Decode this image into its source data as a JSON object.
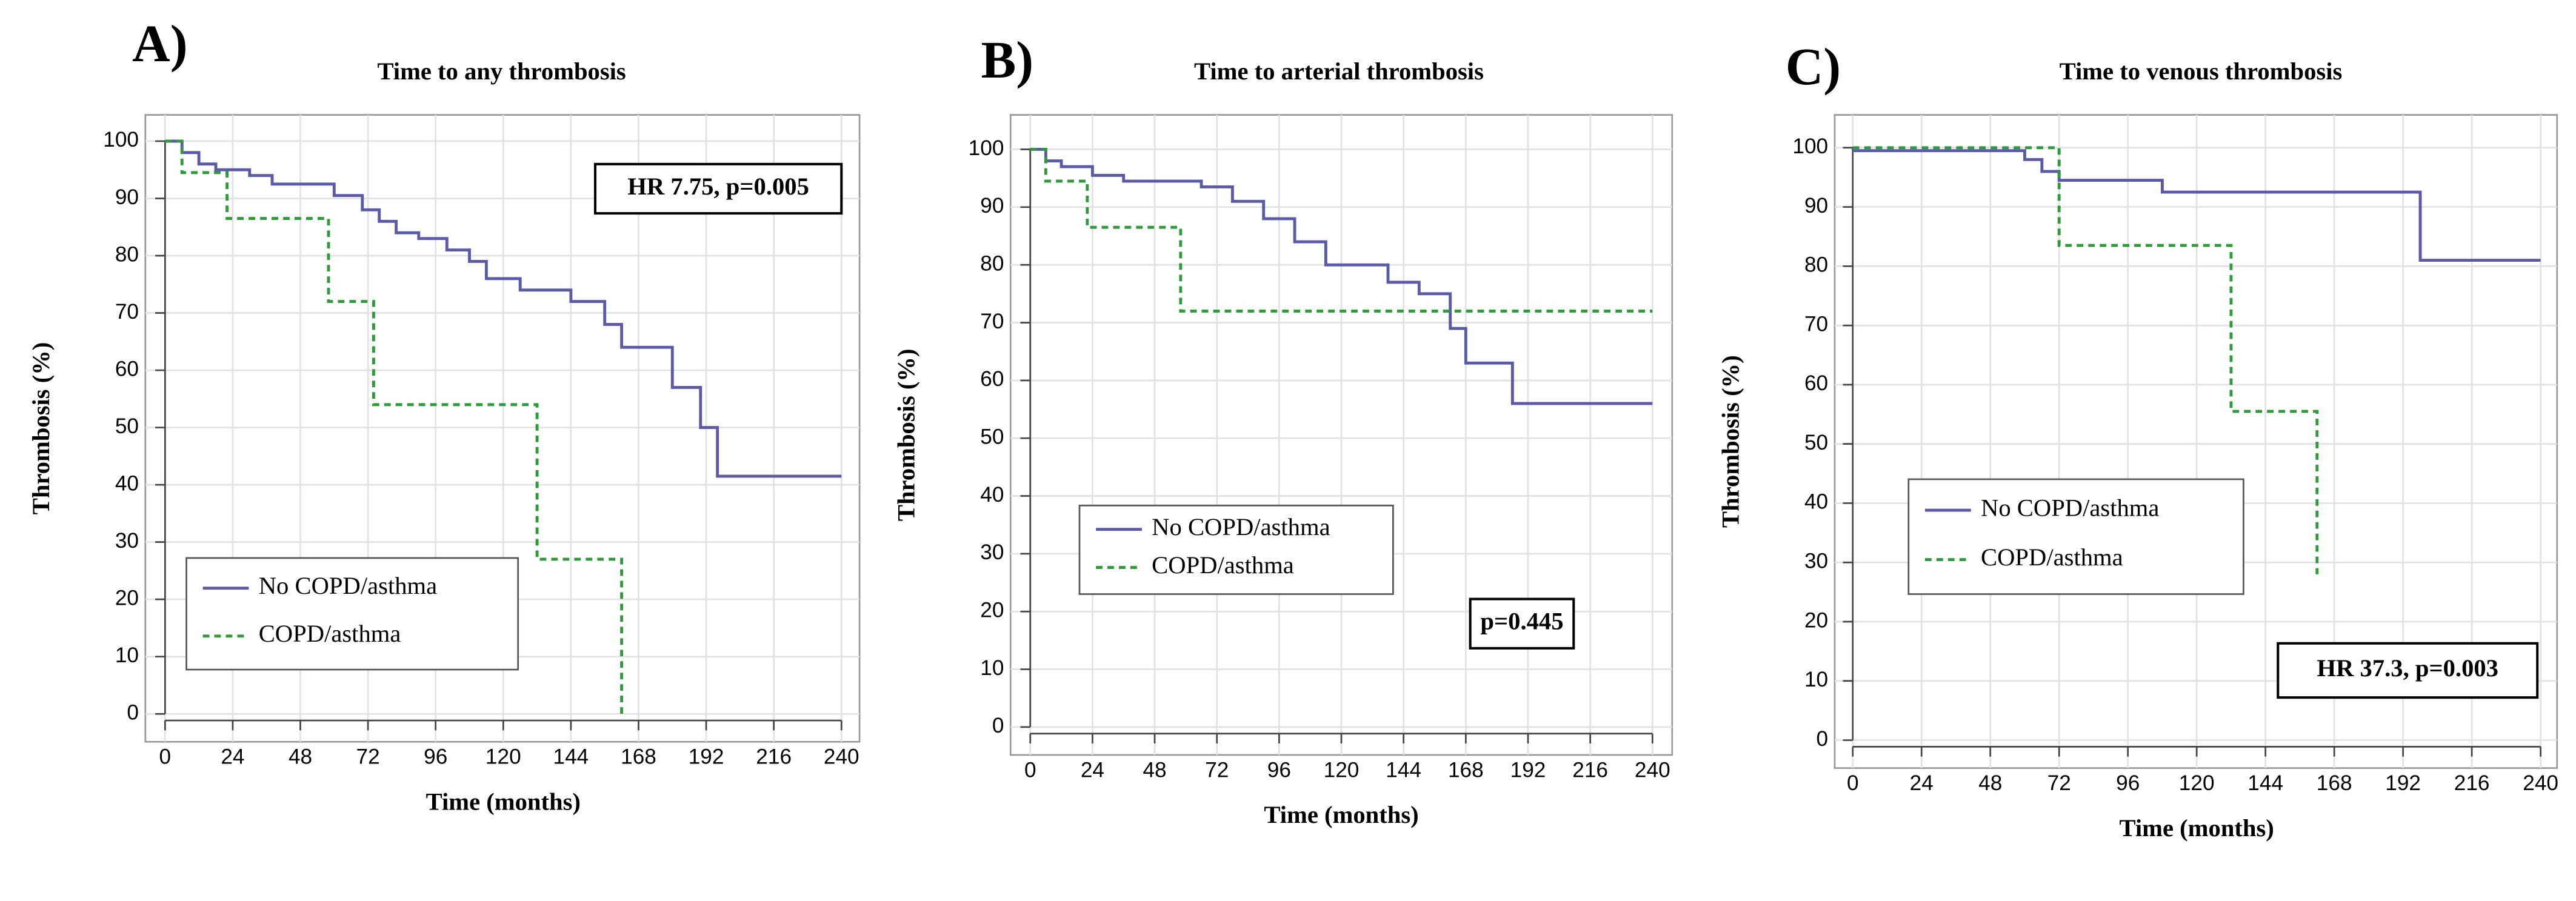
{
  "chart_data": [
    {
      "type": "step",
      "label": "A)",
      "title": "Time to any thrombosis",
      "xlabel": "Time (months)",
      "ylabel": "Thrombosis (%)",
      "xlim": [
        0,
        240
      ],
      "xticks": [
        0,
        24,
        48,
        72,
        96,
        120,
        144,
        168,
        192,
        216,
        240
      ],
      "ylim": [
        0,
        100
      ],
      "yticks": [
        0,
        10,
        20,
        30,
        40,
        50,
        60,
        70,
        80,
        90,
        100
      ],
      "grid": true,
      "legend_position": "lower left",
      "annotation": "HR 7.75, p=0.005",
      "annotation_position": "upper right",
      "series": [
        {
          "name": "No COPD/asthma",
          "color": "#5a5aa8",
          "linestyle": "solid",
          "x": [
            0,
            6,
            12,
            18,
            30,
            38,
            60,
            70,
            76,
            82,
            90,
            100,
            108,
            114,
            126,
            144,
            156,
            162,
            180,
            190,
            196,
            240
          ],
          "values": [
            100,
            98,
            96,
            95,
            94,
            92.5,
            90.5,
            88,
            86,
            84,
            83,
            81,
            79,
            76,
            74,
            72,
            68,
            64,
            57,
            50,
            41.5,
            41.5
          ]
        },
        {
          "name": "COPD/asthma",
          "color": "#2e9a3a",
          "linestyle": "dashed",
          "x": [
            0,
            6,
            22,
            58,
            74,
            132,
            162
          ],
          "values": [
            100,
            94.5,
            86.5,
            72,
            54,
            27,
            0
          ]
        }
      ]
    },
    {
      "type": "step",
      "label": "B)",
      "title": "Time to arterial thrombosis",
      "xlabel": "Time (months)",
      "ylabel": "Thrombosis (%)",
      "xlim": [
        0,
        240
      ],
      "xticks": [
        0,
        24,
        48,
        72,
        96,
        120,
        144,
        168,
        192,
        216,
        240
      ],
      "ylim": [
        0,
        100
      ],
      "yticks": [
        0,
        10,
        20,
        30,
        40,
        50,
        60,
        70,
        80,
        90,
        100
      ],
      "grid": true,
      "legend_position": "center left",
      "annotation": "p=0.445",
      "annotation_position": "lower right",
      "series": [
        {
          "name": "No COPD/asthma",
          "color": "#5a5aa8",
          "linestyle": "solid",
          "x": [
            0,
            6,
            12,
            24,
            36,
            66,
            78,
            90,
            102,
            114,
            138,
            150,
            162,
            168,
            186,
            240
          ],
          "values": [
            100,
            98,
            97,
            95.5,
            94.5,
            93.5,
            91,
            88,
            84,
            80,
            77,
            75,
            69,
            63,
            56,
            56
          ]
        },
        {
          "name": "COPD/asthma",
          "color": "#2e9a3a",
          "linestyle": "dashed",
          "x": [
            0,
            6,
            22,
            58,
            240
          ],
          "values": [
            100,
            94.5,
            86.5,
            72,
            72
          ]
        }
      ]
    },
    {
      "type": "step",
      "label": "C)",
      "title": "Time to venous thrombosis",
      "xlabel": "Time (months)",
      "ylabel": "Thrombosis (%)",
      "xlim": [
        0,
        240
      ],
      "xticks": [
        0,
        24,
        48,
        72,
        96,
        120,
        144,
        168,
        192,
        216,
        240
      ],
      "ylim": [
        0,
        100
      ],
      "yticks": [
        0,
        10,
        20,
        30,
        40,
        50,
        60,
        70,
        80,
        90,
        100
      ],
      "grid": true,
      "legend_position": "center left",
      "annotation": "HR 37.3, p=0.003",
      "annotation_position": "lower right",
      "series": [
        {
          "name": "No COPD/asthma",
          "color": "#5a5aa8",
          "linestyle": "solid",
          "x": [
            0,
            60,
            66,
            72,
            108,
            198,
            240
          ],
          "values": [
            99.5,
            98,
            96,
            94.5,
            92.5,
            81,
            81
          ]
        },
        {
          "name": "COPD/asthma",
          "color": "#2e9a3a",
          "linestyle": "dashed",
          "x": [
            0,
            72,
            132,
            162
          ],
          "values": [
            100,
            83.5,
            55.5,
            28
          ]
        }
      ]
    }
  ]
}
